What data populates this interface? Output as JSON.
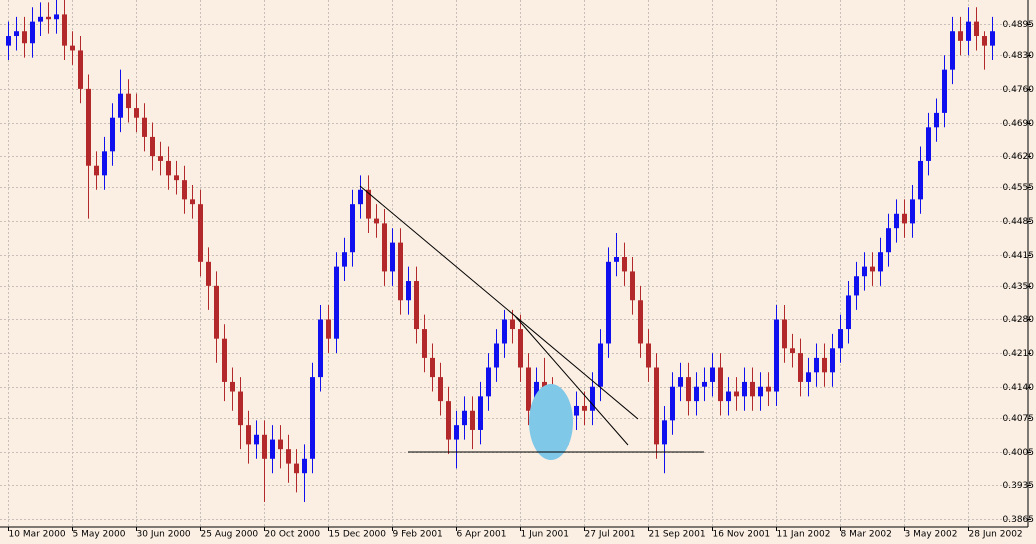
{
  "chart_data": {
    "type": "candlestick",
    "categories": [
      "10 Mar 2000",
      null,
      null,
      null,
      null,
      null,
      null,
      null,
      "5 May 2000",
      null,
      null,
      null,
      null,
      null,
      null,
      null,
      "30 Jun 2000",
      null,
      null,
      null,
      null,
      null,
      null,
      null,
      "25 Aug 2000",
      null,
      null,
      null,
      null,
      null,
      null,
      null,
      "20 Oct 2000",
      null,
      null,
      null,
      null,
      null,
      null,
      null,
      "15 Dec 2000",
      null,
      null,
      null,
      null,
      null,
      null,
      null,
      "9 Feb 2001",
      null,
      null,
      null,
      null,
      null,
      null,
      null,
      "6 Apr 2001",
      null,
      null,
      null,
      null,
      null,
      null,
      null,
      "1 Jun 2001",
      null,
      null,
      null,
      null,
      null,
      null,
      null,
      "27 Jul 2001",
      null,
      null,
      null,
      null,
      null,
      null,
      null,
      "21 Sep 2001",
      null,
      null,
      null,
      null,
      null,
      null,
      null,
      "16 Nov 2001",
      null,
      null,
      null,
      null,
      null,
      null,
      null,
      "11 Jan 2002",
      null,
      null,
      null,
      null,
      null,
      null,
      null,
      "8 Mar 2002",
      null,
      null,
      null,
      null,
      null,
      null,
      null,
      "3 May 2002",
      null,
      null,
      null,
      null,
      null,
      null,
      null,
      "28 Jun 2002",
      null,
      null,
      null
    ],
    "open": [
      0.485,
      0.487,
      0.488,
      0.4855,
      0.49,
      0.491,
      0.4905,
      0.4915,
      0.485,
      0.484,
      0.476,
      0.46,
      0.458,
      0.463,
      0.47,
      0.475,
      0.472,
      0.47,
      0.466,
      0.462,
      0.461,
      0.458,
      0.457,
      0.453,
      0.452,
      0.44,
      0.435,
      0.424,
      0.415,
      0.413,
      0.406,
      0.402,
      0.404,
      0.399,
      0.403,
      0.401,
      0.398,
      0.396,
      0.399,
      0.416,
      0.428,
      0.424,
      0.439,
      0.442,
      0.452,
      0.455,
      0.449,
      0.448,
      0.438,
      0.444,
      0.432,
      0.436,
      0.426,
      0.42,
      0.416,
      0.411,
      0.403,
      0.406,
      0.409,
      0.405,
      0.412,
      0.418,
      0.423,
      0.428,
      0.426,
      0.418,
      0.409,
      0.415,
      0.413,
      0.406,
      0.405,
      0.408,
      0.41,
      0.409,
      0.414,
      0.423,
      0.44,
      0.441,
      0.438,
      0.432,
      0.423,
      0.418,
      0.402,
      0.407,
      0.414,
      0.416,
      0.411,
      0.414,
      0.415,
      0.418,
      0.411,
      0.413,
      0.412,
      0.415,
      0.412,
      0.414,
      0.413,
      0.428,
      0.422,
      0.421,
      0.415,
      0.417,
      0.42,
      0.417,
      0.422,
      0.426,
      0.433,
      0.437,
      0.439,
      0.438,
      0.442,
      0.447,
      0.45,
      0.448,
      0.453,
      0.461,
      0.468,
      0.471,
      0.48,
      0.488,
      0.486,
      0.49,
      0.487,
      0.485
    ],
    "high": [
      0.49,
      0.491,
      0.491,
      0.493,
      0.494,
      0.494,
      0.4945,
      0.4945,
      0.488,
      0.487,
      0.479,
      0.463,
      0.466,
      0.473,
      0.48,
      0.478,
      0.475,
      0.473,
      0.469,
      0.465,
      0.464,
      0.461,
      0.46,
      0.456,
      0.455,
      0.443,
      0.438,
      0.427,
      0.418,
      0.416,
      0.409,
      0.407,
      0.407,
      0.406,
      0.406,
      0.404,
      0.401,
      0.402,
      0.419,
      0.431,
      0.431,
      0.442,
      0.445,
      0.455,
      0.458,
      0.458,
      0.452,
      0.451,
      0.447,
      0.447,
      0.439,
      0.439,
      0.429,
      0.423,
      0.419,
      0.414,
      0.409,
      0.412,
      0.412,
      0.415,
      0.421,
      0.426,
      0.43,
      0.43,
      0.429,
      0.421,
      0.418,
      0.42,
      0.416,
      0.409,
      0.411,
      0.413,
      0.413,
      0.417,
      0.426,
      0.443,
      0.446,
      0.444,
      0.441,
      0.435,
      0.426,
      0.421,
      0.41,
      0.417,
      0.419,
      0.419,
      0.417,
      0.418,
      0.421,
      0.421,
      0.416,
      0.416,
      0.418,
      0.418,
      0.417,
      0.417,
      0.431,
      0.431,
      0.425,
      0.424,
      0.42,
      0.423,
      0.423,
      0.425,
      0.429,
      0.436,
      0.44,
      0.442,
      0.442,
      0.445,
      0.45,
      0.453,
      0.453,
      0.456,
      0.464,
      0.471,
      0.474,
      0.483,
      0.491,
      0.491,
      0.493,
      0.493,
      0.488,
      0.491
    ],
    "low": [
      0.482,
      0.484,
      0.4825,
      0.4825,
      0.487,
      0.4875,
      0.4875,
      0.482,
      0.481,
      0.473,
      0.449,
      0.455,
      0.455,
      0.46,
      0.467,
      0.469,
      0.467,
      0.463,
      0.459,
      0.458,
      0.455,
      0.454,
      0.45,
      0.449,
      0.437,
      0.43,
      0.419,
      0.411,
      0.409,
      0.401,
      0.398,
      0.399,
      0.39,
      0.396,
      0.397,
      0.394,
      0.392,
      0.39,
      0.396,
      0.413,
      0.421,
      0.421,
      0.436,
      0.439,
      0.449,
      0.446,
      0.445,
      0.435,
      0.435,
      0.429,
      0.429,
      0.423,
      0.417,
      0.413,
      0.408,
      0.4,
      0.397,
      0.403,
      0.401,
      0.402,
      0.409,
      0.415,
      0.42,
      0.423,
      0.415,
      0.406,
      0.406,
      0.41,
      0.401,
      0.402,
      0.402,
      0.405,
      0.406,
      0.406,
      0.411,
      0.42,
      0.437,
      0.435,
      0.429,
      0.42,
      0.415,
      0.399,
      0.396,
      0.404,
      0.411,
      0.408,
      0.408,
      0.411,
      0.412,
      0.408,
      0.408,
      0.409,
      0.409,
      0.409,
      0.409,
      0.41,
      0.41,
      0.419,
      0.418,
      0.412,
      0.412,
      0.414,
      0.414,
      0.414,
      0.419,
      0.423,
      0.43,
      0.434,
      0.435,
      0.435,
      0.439,
      0.444,
      0.445,
      0.445,
      0.45,
      0.458,
      0.465,
      0.468,
      0.477,
      0.483,
      0.483,
      0.484,
      0.48,
      0.482
    ],
    "close": [
      0.487,
      0.488,
      0.4855,
      0.49,
      0.491,
      0.4905,
      0.4915,
      0.485,
      0.484,
      0.476,
      0.46,
      0.458,
      0.463,
      0.47,
      0.475,
      0.472,
      0.47,
      0.466,
      0.462,
      0.461,
      0.458,
      0.457,
      0.453,
      0.452,
      0.44,
      0.435,
      0.424,
      0.415,
      0.413,
      0.406,
      0.402,
      0.404,
      0.399,
      0.403,
      0.401,
      0.398,
      0.396,
      0.399,
      0.416,
      0.428,
      0.424,
      0.439,
      0.442,
      0.452,
      0.455,
      0.449,
      0.448,
      0.438,
      0.444,
      0.432,
      0.436,
      0.426,
      0.42,
      0.416,
      0.411,
      0.403,
      0.406,
      0.409,
      0.405,
      0.412,
      0.418,
      0.423,
      0.428,
      0.426,
      0.418,
      0.409,
      0.415,
      0.413,
      0.406,
      0.405,
      0.408,
      0.41,
      0.409,
      0.414,
      0.423,
      0.44,
      0.441,
      0.438,
      0.432,
      0.423,
      0.418,
      0.402,
      0.407,
      0.414,
      0.416,
      0.411,
      0.414,
      0.415,
      0.418,
      0.411,
      0.413,
      0.412,
      0.415,
      0.412,
      0.414,
      0.413,
      0.428,
      0.422,
      0.421,
      0.415,
      0.417,
      0.42,
      0.417,
      0.422,
      0.426,
      0.433,
      0.437,
      0.439,
      0.438,
      0.442,
      0.447,
      0.45,
      0.448,
      0.453,
      0.461,
      0.468,
      0.471,
      0.48,
      0.488,
      0.486,
      0.49,
      0.487,
      0.485,
      0.488
    ],
    "up_color": "#1010ee",
    "down_color": "#b3282a",
    "ylim": [
      0.3848,
      0.4945
    ],
    "yticks": [
      0.4895,
      {
        "value": 0.483,
        "label": "0.4830"
      },
      {
        "value": 0.476,
        "label": "0.4760"
      },
      {
        "value": 0.469,
        "label": "0.4690"
      },
      {
        "value": 0.462,
        "label": "0.4620"
      },
      0.4555,
      0.4485,
      0.4415,
      {
        "value": 0.435,
        "label": "0.4350"
      },
      {
        "value": 0.428,
        "label": "0.4280"
      },
      {
        "value": 0.421,
        "label": "0.4210"
      },
      {
        "value": 0.414,
        "label": "0.4140"
      },
      0.4075,
      0.4005,
      0.3935,
      0.3865
    ],
    "grid": true
  }
}
